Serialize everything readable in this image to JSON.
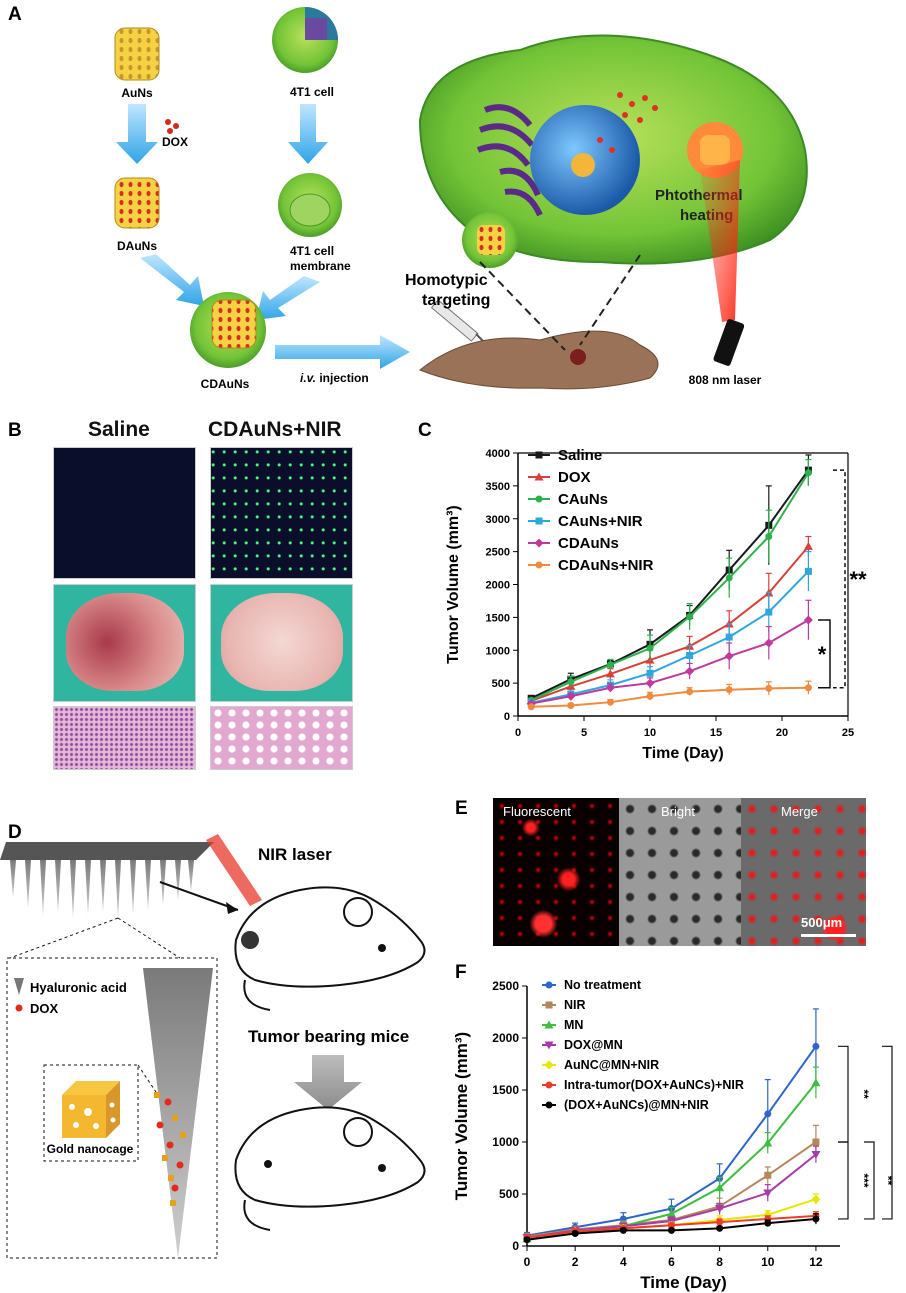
{
  "panels": {
    "A": {
      "label": "A",
      "texts": {
        "auns": "AuNs",
        "dox": "DOX",
        "dauns": "DAuNs",
        "cdauns": "CDAuNs",
        "cell": "4T1 cell",
        "membrane_l1": "4T1 cell",
        "membrane_l2": "membrane",
        "iv_em": "i.v.",
        "iv_rest": " injection",
        "homotypic_l1": "Homotypic",
        "homotypic_l2": "targeting",
        "photothermal_l1": "Phtothermal",
        "photothermal_l2": "heating",
        "laser": "808 nm laser"
      }
    },
    "B": {
      "label": "B",
      "col_saline": "Saline",
      "col_treated": "CDAuNs+NIR"
    },
    "C": {
      "label": "C",
      "significance": [
        "**",
        "*"
      ]
    },
    "D": {
      "label": "D",
      "texts": {
        "nir_laser": "NIR laser",
        "tumor_mice": "Tumor bearing mice",
        "ha": "Hyaluronic acid",
        "dox": "DOX",
        "nanocage": "Gold nanocage"
      }
    },
    "E": {
      "label": "E",
      "tiles": [
        "Fluorescent",
        "Bright",
        "Merge"
      ],
      "scale_bar": "500μm"
    },
    "F": {
      "label": "F",
      "significance": [
        "**",
        "***",
        "**",
        "***"
      ]
    }
  },
  "chart_data": [
    {
      "id": "C",
      "type": "line",
      "xlabel": "Time (Day)",
      "ylabel": "Tumor Volume (mm³)",
      "xlim": [
        0,
        25
      ],
      "ylim": [
        0,
        4000
      ],
      "xticks": [
        0,
        5,
        10,
        15,
        20,
        25
      ],
      "yticks": [
        0,
        500,
        1000,
        1500,
        2000,
        2500,
        3000,
        3500,
        4000
      ],
      "x": [
        1,
        4,
        7,
        10,
        13,
        16,
        19,
        22
      ],
      "legend": "top-left",
      "series": [
        {
          "name": "Saline",
          "color": "#1a1a1a",
          "marker": "square",
          "values": [
            270,
            560,
            790,
            1090,
            1530,
            2220,
            2900,
            3740
          ],
          "err": [
            40,
            90,
            60,
            220,
            150,
            300,
            600,
            230
          ]
        },
        {
          "name": "DOX",
          "color": "#d9403a",
          "marker": "triangle",
          "values": [
            230,
            450,
            640,
            850,
            1060,
            1400,
            1870,
            2580
          ],
          "err": [
            30,
            60,
            80,
            150,
            150,
            200,
            300,
            150
          ]
        },
        {
          "name": "CAuNs",
          "color": "#2bb24c",
          "marker": "circle",
          "values": [
            240,
            520,
            780,
            1030,
            1510,
            2100,
            2730,
            3700
          ],
          "err": [
            30,
            80,
            80,
            200,
            200,
            300,
            400,
            200
          ]
        },
        {
          "name": "CAuNs+NIR",
          "color": "#2ea7dd",
          "marker": "square",
          "values": [
            200,
            330,
            470,
            650,
            920,
            1200,
            1580,
            2200
          ],
          "err": [
            20,
            50,
            80,
            100,
            150,
            200,
            300,
            300
          ]
        },
        {
          "name": "CDAuNs",
          "color": "#c0399e",
          "marker": "diamond",
          "values": [
            190,
            300,
            430,
            500,
            680,
            910,
            1110,
            1460
          ],
          "err": [
            20,
            40,
            60,
            80,
            120,
            200,
            250,
            300
          ]
        },
        {
          "name": "CDAuNs+NIR",
          "color": "#f08a3c",
          "marker": "circle",
          "values": [
            140,
            160,
            210,
            300,
            370,
            400,
            420,
            430
          ],
          "err": [
            20,
            30,
            40,
            60,
            60,
            80,
            100,
            100
          ]
        }
      ]
    },
    {
      "id": "F",
      "type": "line",
      "xlabel": "Time (Day)",
      "ylabel": "Tumor Volume (mm³)",
      "xlim": [
        0,
        13
      ],
      "ylim": [
        0,
        2500
      ],
      "xticks": [
        0,
        2,
        4,
        6,
        8,
        10,
        12
      ],
      "yticks": [
        0,
        500,
        1000,
        1500,
        2000,
        2500
      ],
      "x": [
        0,
        2,
        4,
        6,
        8,
        10,
        12
      ],
      "legend": "top-left",
      "series": [
        {
          "name": "No treatment",
          "color": "#2f64c8",
          "marker": "circle",
          "values": [
            100,
            180,
            260,
            360,
            650,
            1270,
            1920
          ],
          "err": [
            30,
            40,
            60,
            90,
            140,
            330,
            360
          ]
        },
        {
          "name": "NIR",
          "color": "#b5875a",
          "marker": "square",
          "values": [
            90,
            160,
            200,
            250,
            380,
            680,
            1000
          ],
          "err": [
            30,
            30,
            40,
            50,
            80,
            80,
            160
          ]
        },
        {
          "name": "MN",
          "color": "#3ebd3e",
          "marker": "triangle",
          "values": [
            70,
            150,
            190,
            310,
            560,
            990,
            1570
          ],
          "err": [
            20,
            30,
            40,
            60,
            100,
            100,
            150
          ]
        },
        {
          "name": "DOX@MN",
          "color": "#a83aa8",
          "marker": "triangle-down",
          "values": [
            80,
            150,
            190,
            240,
            360,
            510,
            880
          ],
          "err": [
            20,
            30,
            30,
            40,
            50,
            80,
            80
          ]
        },
        {
          "name": "AuNC@MN+NIR",
          "color": "#e6e600",
          "marker": "diamond",
          "values": [
            70,
            140,
            170,
            200,
            250,
            300,
            450
          ],
          "err": [
            20,
            20,
            30,
            30,
            40,
            40,
            50
          ]
        },
        {
          "name": "Intra-tumor(DOX+AuNCs)+NIR",
          "color": "#ee3a2a",
          "marker": "circle",
          "values": [
            80,
            140,
            170,
            200,
            230,
            260,
            290
          ],
          "err": [
            20,
            20,
            20,
            20,
            30,
            30,
            40
          ]
        },
        {
          "name": "(DOX+AuNCs)@MN+NIR",
          "color": "#000000",
          "marker": "circle",
          "values": [
            60,
            120,
            150,
            150,
            170,
            220,
            260
          ],
          "err": [
            20,
            20,
            20,
            20,
            20,
            30,
            50
          ]
        }
      ]
    }
  ]
}
